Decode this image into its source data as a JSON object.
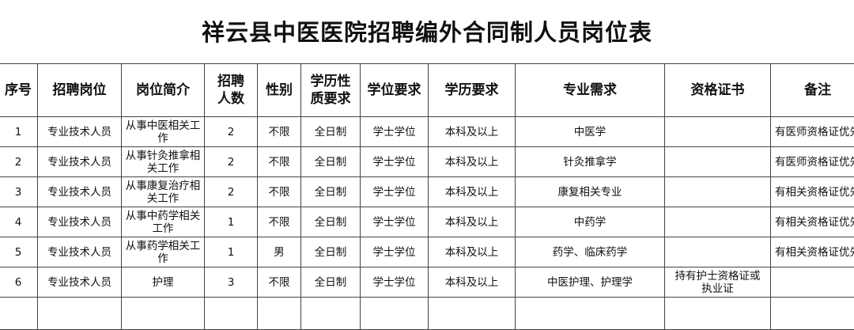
{
  "title": "祥云县中医医院招聘编外合同制人员岗位表",
  "headers": [
    "序号",
    "招聘岗位",
    "岗位简介",
    "招聘人数",
    "性别",
    "学历性质要求",
    "学位要求",
    "学历要求",
    "专业需求",
    "资格证书",
    "备注"
  ],
  "rows": [
    [
      "1",
      "专业技术人员",
      "从事中医相关工作",
      "2",
      "不限",
      "全日制",
      "学士学位",
      "本科及以上",
      "中医学",
      "",
      "有医师资格证优先"
    ],
    [
      "2",
      "专业技术人员",
      "从事针灸推拿相关工作",
      "2",
      "不限",
      "全日制",
      "学士学位",
      "本科及以上",
      "针灸推拿学",
      "",
      "有医师资格证优先"
    ],
    [
      "3",
      "专业技术人员",
      "从事康复治疗相关工作",
      "2",
      "不限",
      "全日制",
      "学士学位",
      "本科及以上",
      "康复相关专业",
      "",
      "有相关资格证优先"
    ],
    [
      "4",
      "专业技术人员",
      "从事中药学相关工作",
      "1",
      "不限",
      "全日制",
      "学士学位",
      "本科及以上",
      "中药学",
      "",
      "有相关资格证优先"
    ],
    [
      "5",
      "专业技术人员",
      "从事药学相关工作",
      "1",
      "男",
      "全日制",
      "学士学位",
      "本科及以上",
      "药学、临床药学",
      "",
      "有相关资格证优先"
    ],
    [
      "6",
      "专业技术人员",
      "护理",
      "3",
      "不限",
      "全日制",
      "学士学位",
      "本科及以上",
      "中医护理、护理学",
      "持有护士资格证或执业证",
      ""
    ]
  ]
}
